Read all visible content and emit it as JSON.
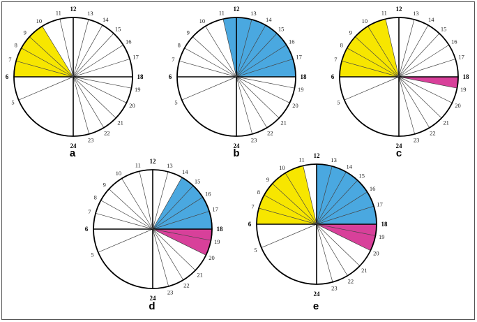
{
  "colors": {
    "yellow": "#f7e600",
    "blue": "#4aa8e0",
    "magenta": "#d8409a"
  },
  "panels": [
    {
      "label": "a",
      "numbers": [
        "12",
        "13",
        "14",
        "15",
        "16",
        "17",
        "18",
        "19",
        "20",
        "21",
        "22",
        "23",
        "24",
        "5",
        "6",
        "7",
        "8",
        "9",
        "10",
        "11"
      ],
      "fills": [
        {
          "from": 6,
          "to": 10,
          "color": "yellow"
        }
      ]
    },
    {
      "label": "b",
      "numbers": [
        "12",
        "13",
        "14",
        "15",
        "16",
        "17",
        "18",
        "19",
        "20",
        "21",
        "22",
        "23",
        "24",
        "5",
        "6",
        "7",
        "8",
        "9",
        "10",
        "11"
      ],
      "fills": [
        {
          "from": 11,
          "to": 18,
          "color": "blue"
        }
      ]
    },
    {
      "label": "c",
      "numbers": [
        "12",
        "13",
        "14",
        "15",
        "16",
        "17",
        "18",
        "19",
        "20",
        "21",
        "22",
        "23",
        "24",
        "5",
        "6",
        "7",
        "8",
        "9",
        "10",
        "11"
      ],
      "fills": [
        {
          "from": 6,
          "to": 11,
          "color": "yellow"
        },
        {
          "from": 18,
          "to": 19,
          "color": "magenta"
        }
      ]
    },
    {
      "label": "d",
      "numbers": [
        "12",
        "13",
        "14",
        "15",
        "16",
        "17",
        "18",
        "19",
        "20",
        "21",
        "22",
        "23",
        "24",
        "5",
        "6",
        "7",
        "8",
        "9",
        "10",
        "11"
      ],
      "fills": [
        {
          "from": 14,
          "to": 18,
          "color": "blue"
        },
        {
          "from": 18,
          "to": 20,
          "color": "magenta"
        }
      ]
    },
    {
      "label": "e",
      "numbers": [
        "12",
        "13",
        "14",
        "15",
        "16",
        "17",
        "18",
        "19",
        "20",
        "21",
        "22",
        "23",
        "24",
        "5",
        "6",
        "7",
        "8",
        "9",
        "10",
        "11"
      ],
      "fills": [
        {
          "from": 6,
          "to": 11,
          "color": "yellow"
        },
        {
          "from": 12,
          "to": 18,
          "color": "blue"
        },
        {
          "from": 18,
          "to": 20,
          "color": "magenta"
        }
      ]
    }
  ]
}
